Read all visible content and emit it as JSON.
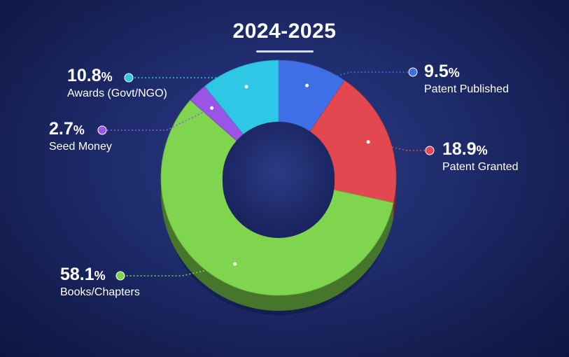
{
  "chart_data": {
    "type": "pie",
    "title": "2024-2025",
    "unit": "%",
    "categories": [
      "Patent Published",
      "Patent Granted",
      "Books/Chapters",
      "Seed Money",
      "Awards (Govt/NGO)"
    ],
    "values": [
      9.5,
      18.9,
      58.1,
      2.7,
      10.8
    ],
    "value_labels": [
      "9.5",
      "18.9",
      "58.1",
      "2.7",
      "10.8"
    ],
    "colors": [
      "#3f6fe6",
      "#e3474f",
      "#7fd64e",
      "#9a55e6",
      "#2ec8e6"
    ],
    "legend": "callouts"
  }
}
